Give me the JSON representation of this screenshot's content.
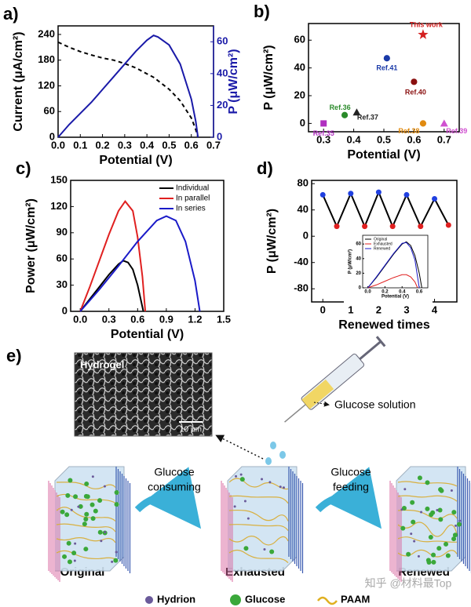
{
  "chart_data": [
    {
      "type": "line",
      "label": "a)",
      "xlabel": "Potential (V)",
      "ylabel": "Current (μA/cm²)",
      "y2label": "P (μW/cm²)",
      "y2color": "#1a1aa8",
      "x": [
        0,
        0.05,
        0.1,
        0.15,
        0.2,
        0.25,
        0.3,
        0.35,
        0.4,
        0.43,
        0.45,
        0.5,
        0.55,
        0.6,
        0.62,
        0.63
      ],
      "series": [
        {
          "color": "#000000",
          "style": "dashed",
          "values": [
            222,
            210,
            200,
            192,
            185,
            180,
            172,
            162,
            148,
            140,
            132,
            112,
            85,
            45,
            18,
            0
          ]
        },
        {
          "color": "#1a1aa8",
          "style": "solid",
          "axis": "y2",
          "values": [
            0,
            8,
            15,
            22,
            30,
            38,
            46,
            54,
            61,
            64,
            63,
            58,
            46,
            24,
            10,
            0
          ]
        }
      ],
      "xlim": [
        0,
        0.7
      ],
      "xticks": [
        {
          "value": 0,
          "label": "0.0"
        },
        {
          "value": 0.1,
          "label": "0.1"
        },
        {
          "value": 0.2,
          "label": "0.2"
        },
        {
          "value": 0.3,
          "label": "0.3"
        },
        {
          "value": 0.4,
          "label": "0.4"
        },
        {
          "value": 0.5,
          "label": "0.5"
        },
        {
          "value": 0.6,
          "label": "0.6"
        },
        {
          "value": 0.7,
          "label": "0.7"
        }
      ],
      "ylim": [
        0,
        260
      ],
      "yticks": [
        0,
        60,
        120,
        180,
        240
      ],
      "y2lim": [
        0,
        70
      ],
      "y2ticks": [
        0,
        20,
        40,
        60
      ]
    },
    {
      "type": "scatter",
      "label": "b)",
      "xlabel": "Potential (V)",
      "ylabel": "P (μW/cm²)",
      "x": [
        0.3,
        0.37,
        0.41,
        0.51,
        0.63,
        0.6,
        0.63,
        0.7
      ],
      "values": [
        0,
        6,
        8,
        47,
        64,
        30,
        0,
        0
      ],
      "labels": [
        "Ref.35",
        "Ref.36",
        "Ref.37",
        "Ref.41",
        "This work",
        "Ref.40",
        "Ref.38",
        "Ref.39"
      ],
      "colors": [
        "#b030c0",
        "#2a8a2a",
        "#222222",
        "#1a3aa8",
        "#d42020",
        "#8a1010",
        "#e08a10",
        "#d050d0"
      ],
      "markers": [
        "square",
        "circle",
        "triangle",
        "circle",
        "star",
        "circle",
        "circle",
        "triangle"
      ],
      "xlim": [
        0.25,
        0.75
      ],
      "xticks": [
        0.3,
        0.4,
        0.5,
        0.6,
        0.7
      ],
      "ylim": [
        -6,
        72
      ],
      "yticks": [
        0,
        20,
        40,
        60
      ]
    },
    {
      "type": "line",
      "label": "c)",
      "xlabel": "Potential (V)",
      "ylabel": "Power (μW/cm²)",
      "legend": "top-right",
      "series": [
        {
          "name": "Individual",
          "color": "#000000",
          "x": [
            0,
            0.1,
            0.2,
            0.3,
            0.4,
            0.45,
            0.5,
            0.55,
            0.6,
            0.66
          ],
          "values": [
            0,
            14,
            28,
            42,
            54,
            58,
            56,
            48,
            30,
            0
          ]
        },
        {
          "name": "In parallel",
          "color": "#e02020",
          "x": [
            0,
            0.1,
            0.2,
            0.3,
            0.4,
            0.47,
            0.55,
            0.6,
            0.65,
            0.68
          ],
          "values": [
            0,
            28,
            58,
            88,
            115,
            126,
            115,
            85,
            40,
            0
          ]
        },
        {
          "name": "In series",
          "color": "#1a1ac8",
          "x": [
            0,
            0.2,
            0.4,
            0.6,
            0.8,
            0.9,
            1.0,
            1.1,
            1.2,
            1.25
          ],
          "values": [
            0,
            25,
            52,
            80,
            104,
            109,
            104,
            80,
            35,
            0
          ]
        }
      ],
      "xlim": [
        -0.1,
        1.5
      ],
      "xticks": [
        {
          "value": 0,
          "label": "0.0"
        },
        {
          "value": 0.3,
          "label": "0.3"
        },
        {
          "value": 0.6,
          "label": "0.6"
        },
        {
          "value": 0.9,
          "label": "0.9"
        },
        {
          "value": 1.2,
          "label": "1.2"
        },
        1.5
      ],
      "ylim": [
        0,
        150
      ],
      "yticks": [
        0,
        30,
        60,
        90,
        120,
        150
      ]
    },
    {
      "type": "line",
      "label": "d)",
      "xlabel": "Renewed times",
      "ylabel": "P (μW/cm²)",
      "series": [
        {
          "color": "#000000",
          "markers": true,
          "x": [
            0,
            0.5,
            1,
            1.5,
            2,
            2.5,
            3,
            3.5,
            4,
            4.5
          ],
          "values": [
            63,
            15,
            65,
            15,
            67,
            15,
            63,
            15,
            57,
            17
          ],
          "marker_colors": [
            "#2040e0",
            "#e02020",
            "#2040e0",
            "#e02020",
            "#2040e0",
            "#e02020",
            "#2040e0",
            "#e02020",
            "#2040e0",
            "#e02020"
          ]
        }
      ],
      "xlim": [
        -0.4,
        4.8
      ],
      "xticks": [
        0,
        1,
        2,
        3,
        4
      ],
      "ylim": [
        -100,
        85
      ],
      "yticks": [
        -80,
        -40,
        0,
        40,
        80
      ]
    },
    {
      "type": "line",
      "inset": true,
      "xlabel": "Potential (V)",
      "ylabel": "P (μW/cm²)",
      "legend": "top-left",
      "series": [
        {
          "name": "Original",
          "color": "#000000",
          "x": [
            0,
            0.1,
            0.2,
            0.3,
            0.4,
            0.45,
            0.5,
            0.55,
            0.6,
            0.63
          ],
          "values": [
            0,
            14,
            30,
            46,
            60,
            63,
            58,
            44,
            20,
            0
          ]
        },
        {
          "name": "Exhausted",
          "color": "#e02020",
          "x": [
            0,
            0.1,
            0.2,
            0.3,
            0.4,
            0.45,
            0.5,
            0.55,
            0.58
          ],
          "values": [
            0,
            4,
            9,
            14,
            18,
            18,
            15,
            8,
            0
          ]
        },
        {
          "name": "Renewed",
          "color": "#1a1ac8",
          "x": [
            0,
            0.1,
            0.2,
            0.3,
            0.4,
            0.45,
            0.5,
            0.55,
            0.6
          ],
          "values": [
            0,
            15,
            31,
            47,
            61,
            62,
            55,
            38,
            0
          ]
        }
      ],
      "xlim": [
        -0.06,
        0.7
      ],
      "xticks": [
        {
          "value": 0,
          "label": "0.0"
        },
        {
          "value": 0.2,
          "label": "0.2"
        },
        {
          "value": 0.4,
          "label": "0.4"
        },
        {
          "value": 0.6,
          "label": "0.6"
        }
      ],
      "ylim": [
        0,
        72
      ],
      "yticks": [
        0,
        20,
        40,
        60
      ]
    }
  ],
  "diagram": {
    "label": "e)",
    "sem_label": "Hydrogel",
    "scale_bar": "10 μm",
    "syringe_label": "Glucose solution",
    "steps": [
      [
        "Glucose",
        "consuming"
      ],
      [
        "Glucose",
        "feeding"
      ]
    ],
    "states": [
      "Original",
      "Exhausted",
      "Renewed"
    ],
    "legend": [
      "Hydrion",
      "Glucose",
      "PAAM"
    ],
    "watermark": "知乎 @材料最Top"
  }
}
